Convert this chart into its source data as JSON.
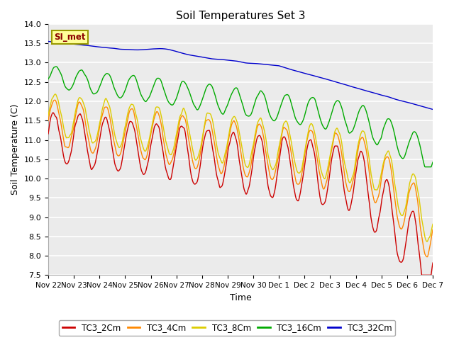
{
  "title": "Soil Temperatures Set 3",
  "xlabel": "Time",
  "ylabel": "Soil Temperature (C)",
  "ylim": [
    7.5,
    14.0
  ],
  "yticks": [
    7.5,
    8.0,
    8.5,
    9.0,
    9.5,
    10.0,
    10.5,
    11.0,
    11.5,
    12.0,
    12.5,
    13.0,
    13.5,
    14.0
  ],
  "plot_bg_color": "#ebebeb",
  "series_colors": {
    "TC3_2Cm": "#cc0000",
    "TC3_4Cm": "#ff8800",
    "TC3_8Cm": "#ddcc00",
    "TC3_16Cm": "#00aa00",
    "TC3_32Cm": "#0000cc"
  },
  "legend_label": "SI_met",
  "legend_bg": "#ffff99",
  "legend_border": "#999900",
  "x_tick_labels": [
    "Nov 22",
    "Nov 23",
    "Nov 24",
    "Nov 25",
    "Nov 26",
    "Nov 27",
    "Nov 28",
    "Nov 29",
    "Nov 30",
    "Dec 1",
    "Dec 2",
    "Dec 3",
    "Dec 4",
    "Dec 5",
    "Dec 6",
    "Dec 7"
  ],
  "n_points": 1500,
  "line_width": 1.0
}
